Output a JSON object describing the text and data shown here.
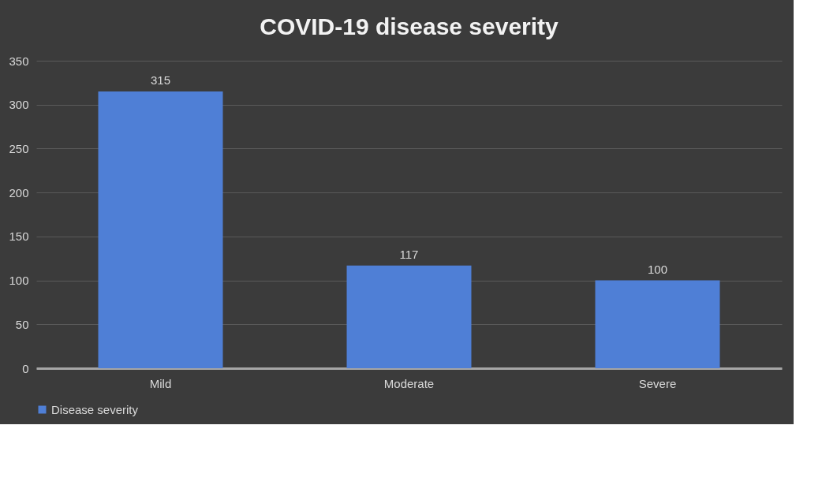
{
  "chart_data": {
    "type": "bar",
    "title": "COVID-19 disease severity",
    "categories": [
      "Mild",
      "Moderate",
      "Severe"
    ],
    "series": [
      {
        "name": "Disease severity",
        "color": "#4f7fd6",
        "values": [
          315,
          117,
          100
        ]
      }
    ],
    "ylim": [
      0,
      350
    ],
    "yticks": [
      0,
      50,
      100,
      150,
      200,
      250,
      300,
      350
    ],
    "grid": "y",
    "data_labels": true,
    "legend": "bottom"
  }
}
